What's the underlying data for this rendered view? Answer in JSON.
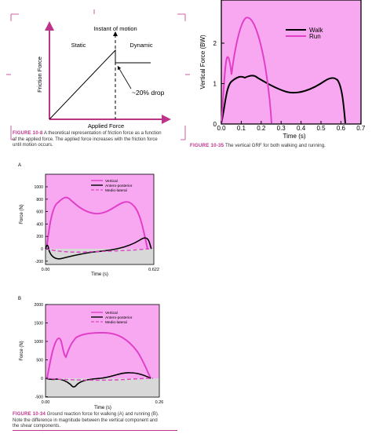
{
  "colors": {
    "accent": "#c0338b",
    "pink_plot": "#f8a8f0",
    "run_line": "#e040c8",
    "walk_line": "#000000",
    "gray_region": "#d8d8d8"
  },
  "friction_fig": {
    "top_label": "Instant of motion",
    "static_label": "Static",
    "dynamic_label": "Dynamic",
    "ylabel": "Friction Force",
    "xlabel": "Applied Force",
    "drop_label": "~20% drop",
    "caption_fig": "FIGURE 10-8",
    "caption_l1": "A theoretical representation of friction force as a function",
    "caption_l2": "of the applied force. The applied force increases with the friction force",
    "caption_l3": "until motion occurs."
  },
  "grf_fig": {
    "ylabel": "Vertical Force (BW)",
    "xlabel": "Time (s)",
    "yticks": [
      "0",
      "1",
      "2"
    ],
    "xticks": [
      "0.0",
      "0.1",
      "0.2",
      "0.3",
      "0.4",
      "0.5",
      "0.6",
      "0.7"
    ],
    "legend": [
      "Walk",
      "Run"
    ],
    "caption_fig": "FIGURE 10-35",
    "caption_text": "The vertical GRF for both walking and running."
  },
  "panel_a": {
    "panel_label": "A",
    "ylabel": "Force (N)",
    "xlabel": "Time (s)",
    "yticks": [
      "1000",
      "800",
      "600",
      "400",
      "200",
      "0",
      "-200"
    ],
    "x_start": "0.00",
    "x_end": "0.622",
    "legend": [
      "Vertical",
      "Antero-posterior",
      "Medio-lateral"
    ]
  },
  "panel_b": {
    "panel_label": "B",
    "ylabel": "Force (N)",
    "xlabel": "Time (s)",
    "yticks": [
      "2000",
      "1500",
      "1000",
      "500",
      "0",
      "-500"
    ],
    "x_start": "0.00",
    "x_end": "0.26",
    "legend": [
      "Vertical",
      "Antero-posterior",
      "Medio-lateral"
    ],
    "caption_fig": "FIGURE 10-34",
    "caption_l1": "Ground reaction force for walking (A) and running (B).",
    "caption_l2": "Note the difference in magnitude between the vertical component and",
    "caption_l3": "the shear components."
  }
}
